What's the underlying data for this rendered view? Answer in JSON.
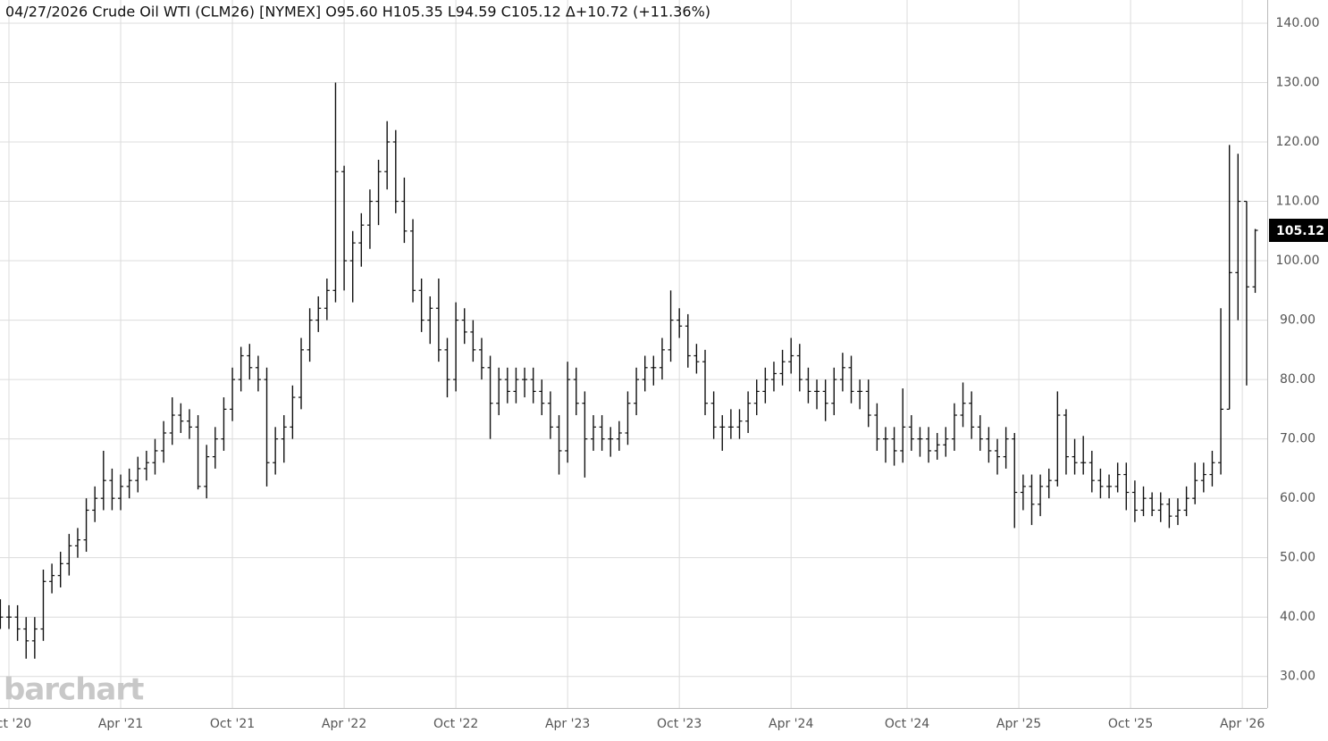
{
  "chart_data": {
    "type": "ohlc",
    "title": "04/27/2026 Crude Oil WTI (CLM26) [NYMEX] O95.60 H105.35 L94.59 C105.12 Δ+10.72 (+11.36%)",
    "watermark": "barchart",
    "color": "#111111",
    "grid": true,
    "last_price": 105.12,
    "xlim": [
      -0.04,
      147.4
    ],
    "ylim": [
      24.7,
      143.9
    ],
    "xticks": [
      {
        "value": 1,
        "label": "Oct '20"
      },
      {
        "value": 14,
        "label": "Apr '21"
      },
      {
        "value": 27,
        "label": "Oct '21"
      },
      {
        "value": 40,
        "label": "Apr '22"
      },
      {
        "value": 53,
        "label": "Oct '22"
      },
      {
        "value": 66,
        "label": "Apr '23"
      },
      {
        "value": 79,
        "label": "Oct '23"
      },
      {
        "value": 92,
        "label": "Apr '24"
      },
      {
        "value": 105.5,
        "label": "Oct '24"
      },
      {
        "value": 118.5,
        "label": "Apr '25"
      },
      {
        "value": 131.5,
        "label": "Oct '25"
      },
      {
        "value": 144.5,
        "label": "Apr '26"
      }
    ],
    "yticks": [
      {
        "value": 30,
        "label": "30.00"
      },
      {
        "value": 40,
        "label": "40.00"
      },
      {
        "value": 50,
        "label": "50.00"
      },
      {
        "value": 60,
        "label": "60.00"
      },
      {
        "value": 70,
        "label": "70.00"
      },
      {
        "value": 80,
        "label": "80.00"
      },
      {
        "value": 90,
        "label": "90.00"
      },
      {
        "value": 100,
        "label": "100.00"
      },
      {
        "value": 110,
        "label": "110.00"
      },
      {
        "value": 120,
        "label": "120.00"
      },
      {
        "value": 130,
        "label": "130.00"
      },
      {
        "value": 140,
        "label": "140.00"
      }
    ],
    "open": [
      41,
      40,
      40,
      38,
      36,
      38,
      46,
      47,
      49,
      52,
      53,
      58,
      60,
      63,
      60,
      62,
      63,
      65,
      66,
      68,
      71,
      74,
      73,
      72,
      62,
      67,
      70,
      75,
      80,
      84,
      82,
      80,
      66,
      70,
      72,
      77,
      85,
      90,
      92,
      95,
      115,
      100,
      103,
      106,
      110,
      115,
      120,
      110,
      105,
      95,
      90,
      92,
      85,
      80,
      90,
      88,
      85,
      82,
      76,
      80,
      78,
      80,
      80,
      78,
      76,
      72,
      68,
      80,
      76,
      70,
      72,
      70,
      70,
      71,
      76,
      80,
      82,
      82,
      85,
      90,
      89,
      84,
      83,
      76,
      72,
      72,
      72,
      73,
      76,
      78,
      80,
      81,
      83,
      84,
      80,
      78,
      78,
      76,
      80,
      82,
      78,
      78,
      74,
      70,
      70,
      68,
      72,
      70,
      70,
      68,
      69,
      70,
      74,
      76,
      72,
      70,
      68,
      67,
      70,
      61,
      62,
      59,
      62,
      63,
      74,
      67,
      66,
      66,
      63,
      62,
      62,
      64,
      61,
      58,
      60,
      58,
      59,
      57,
      58,
      60,
      63,
      64,
      66,
      75,
      98,
      110,
      95.6
    ],
    "high": [
      43,
      42,
      42,
      40,
      40,
      48,
      49,
      51,
      54,
      55,
      60,
      62,
      68,
      65,
      64,
      65,
      67,
      68,
      70,
      73,
      77,
      76,
      75,
      74,
      69,
      72,
      77,
      82,
      85.5,
      86,
      84,
      82,
      72,
      74,
      79,
      87,
      92,
      94,
      97,
      130,
      116,
      105,
      108,
      112,
      117,
      123.5,
      122,
      114,
      107,
      97,
      94,
      97,
      87,
      93,
      92,
      90,
      87,
      84,
      82,
      82,
      82,
      82,
      82,
      80,
      78,
      74,
      83,
      82,
      78,
      74,
      74,
      72,
      73,
      78,
      82,
      84,
      84,
      87,
      95,
      92,
      91,
      86,
      85,
      78,
      74,
      75,
      75,
      78,
      80,
      82,
      83,
      85,
      87,
      86,
      82,
      80,
      80,
      82,
      84.5,
      84,
      80,
      80,
      76,
      72,
      72,
      78.5,
      74,
      72,
      72,
      71,
      72,
      76,
      79.5,
      78,
      74,
      72,
      70,
      72,
      71,
      64,
      64,
      64,
      65,
      78,
      75,
      70,
      70.5,
      68,
      65,
      64,
      66,
      66,
      63,
      62,
      61,
      61,
      60,
      60,
      62,
      66,
      66,
      68,
      92,
      119.5,
      118,
      110,
      105.35
    ],
    "low": [
      38,
      38,
      36,
      33,
      33,
      36,
      44,
      45,
      47,
      50,
      51,
      56,
      58,
      58,
      58,
      60,
      61,
      63,
      64,
      66,
      69,
      71,
      70,
      61.5,
      60,
      65,
      68,
      73,
      78,
      80,
      78,
      62,
      64,
      66,
      70,
      75,
      83,
      88,
      90,
      93,
      95,
      93,
      99,
      102,
      106,
      112,
      108,
      103,
      93,
      88,
      86,
      83,
      77,
      78,
      86,
      83,
      80,
      70,
      74,
      76,
      76,
      77,
      76,
      74,
      70,
      64,
      66,
      74,
      63.5,
      68,
      68,
      67,
      68,
      69,
      74,
      78,
      79,
      80,
      83,
      87,
      82,
      81,
      74,
      70,
      68,
      70,
      70,
      71,
      74,
      76,
      78,
      79,
      81,
      78,
      76,
      75,
      73,
      74,
      78,
      76,
      75,
      72,
      68,
      66,
      65.5,
      66,
      68,
      67,
      66,
      66.5,
      67,
      68,
      72,
      70,
      68,
      66,
      64,
      65,
      55,
      58,
      55.5,
      57,
      60,
      62,
      64,
      64,
      64,
      61,
      60,
      60,
      61,
      58,
      56,
      57,
      57,
      56,
      55,
      55.5,
      57,
      59,
      61,
      62,
      64,
      75,
      90,
      79,
      94.59
    ],
    "close": [
      40,
      40,
      38,
      36,
      38,
      46,
      47,
      49,
      52,
      53,
      58,
      60,
      63,
      60,
      62,
      63,
      65,
      66,
      68,
      71,
      74,
      73,
      72,
      62,
      67,
      70,
      75,
      80,
      84,
      82,
      80,
      66,
      70,
      72,
      77,
      85,
      90,
      92,
      95,
      115,
      100,
      103,
      106,
      110,
      115,
      120,
      110,
      105,
      95,
      90,
      92,
      85,
      80,
      90,
      88,
      85,
      82,
      76,
      80,
      78,
      80,
      80,
      78,
      76,
      72,
      68,
      80,
      76,
      70,
      72,
      70,
      70,
      71,
      76,
      80,
      82,
      82,
      85,
      90,
      89,
      84,
      83,
      76,
      72,
      72,
      72,
      73,
      76,
      78,
      80,
      81,
      83,
      84,
      80,
      78,
      78,
      76,
      80,
      82,
      78,
      78,
      74,
      70,
      70,
      68,
      72,
      70,
      70,
      68,
      69,
      70,
      74,
      76,
      72,
      70,
      68,
      67,
      70,
      61,
      62,
      59,
      62,
      63,
      74,
      67,
      66,
      66,
      63,
      62,
      62,
      64,
      61,
      58,
      60,
      58,
      59,
      57,
      58,
      60,
      63,
      64,
      66,
      75,
      98,
      110,
      95.6,
      105.12
    ]
  }
}
